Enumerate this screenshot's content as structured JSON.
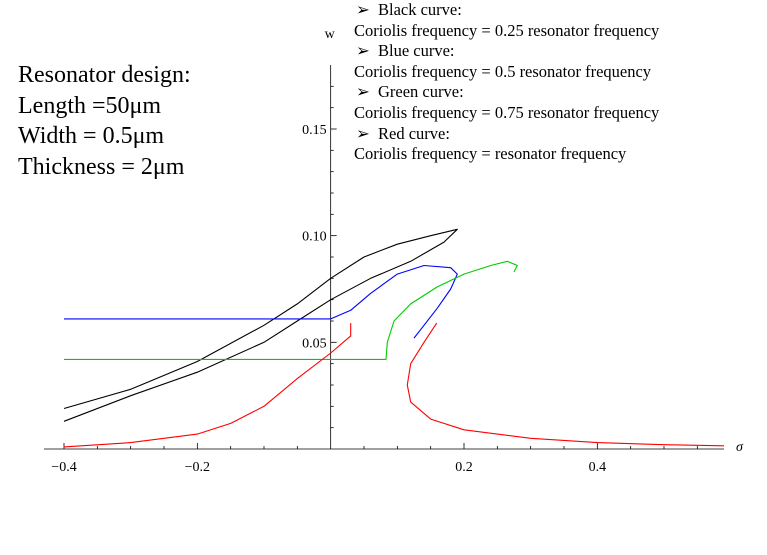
{
  "design": {
    "heading": "Resonator design:",
    "length": "Length =50μm",
    "width": "Width = 0.5μm",
    "thickness": "Thickness = 2μm"
  },
  "legend": {
    "bullet": "➢",
    "items": [
      {
        "label": "Black curve:",
        "text": "Coriolis frequency = 0.25 resonator frequency"
      },
      {
        "label": "Blue curve:",
        "text": "Coriolis frequency = 0.5 resonator frequency"
      },
      {
        "label": "Green curve:",
        "text": "Coriolis frequency = 0.75 resonator frequency"
      },
      {
        "label": "Red curve:",
        "text": "Coriolis frequency = resonator frequency"
      }
    ]
  },
  "chart_data": {
    "type": "line",
    "xlabel": "σ",
    "ylabel": "w",
    "xlim": [
      -0.43,
      0.59
    ],
    "ylim": [
      0,
      0.18
    ],
    "xticks": [
      {
        "value": -0.4,
        "label": "−0.4"
      },
      {
        "value": -0.2,
        "label": "−0.2"
      },
      {
        "value": 0.2,
        "label": "0.2"
      },
      {
        "value": 0.4,
        "label": "0.4"
      }
    ],
    "yticks": [
      {
        "value": 0.05,
        "label": "0.05"
      },
      {
        "value": 0.1,
        "label": "0.10"
      },
      {
        "value": 0.15,
        "label": "0.15"
      }
    ],
    "series": [
      {
        "color": "#000000",
        "role": "black-curve",
        "points": [
          [
            -0.4,
            0.019
          ],
          [
            -0.3,
            0.028
          ],
          [
            -0.2,
            0.041
          ],
          [
            -0.1,
            0.058
          ],
          [
            -0.05,
            0.068
          ],
          [
            0.0,
            0.08
          ],
          [
            0.05,
            0.09
          ],
          [
            0.1,
            0.096
          ],
          [
            0.15,
            0.1
          ],
          [
            0.19,
            0.103
          ],
          [
            0.17,
            0.097
          ],
          [
            0.12,
            0.088
          ],
          [
            0.06,
            0.08
          ],
          [
            0.0,
            0.07
          ],
          [
            -0.05,
            0.06
          ],
          [
            -0.1,
            0.05
          ],
          [
            -0.2,
            0.036
          ],
          [
            -0.3,
            0.025
          ],
          [
            -0.4,
            0.013
          ]
        ]
      },
      {
        "color": "#0000ff",
        "role": "blue-curve",
        "points": [
          [
            -0.4,
            0.061
          ],
          [
            -0.02,
            0.061
          ],
          [
            0.0,
            0.061
          ],
          [
            0.03,
            0.065
          ],
          [
            0.06,
            0.073
          ],
          [
            0.1,
            0.082
          ],
          [
            0.14,
            0.086
          ],
          [
            0.18,
            0.085
          ],
          [
            0.19,
            0.082
          ],
          [
            0.18,
            0.075
          ],
          [
            0.16,
            0.066
          ],
          [
            0.14,
            0.058
          ],
          [
            0.125,
            0.052
          ]
        ]
      },
      {
        "color": "#00cc00",
        "role": "green-curve",
        "points": [
          [
            -0.4,
            0.042
          ],
          [
            0.083,
            0.042
          ],
          [
            0.085,
            0.05
          ],
          [
            0.095,
            0.06
          ],
          [
            0.12,
            0.068
          ],
          [
            0.16,
            0.076
          ],
          [
            0.2,
            0.082
          ],
          [
            0.24,
            0.086
          ],
          [
            0.265,
            0.088
          ],
          [
            0.28,
            0.086
          ],
          [
            0.275,
            0.083
          ]
        ]
      },
      {
        "color": "#ff0000",
        "role": "red-curve-left",
        "points": [
          [
            -0.4,
            0.001
          ],
          [
            -0.3,
            0.003
          ],
          [
            -0.25,
            0.005
          ],
          [
            -0.2,
            0.007
          ],
          [
            -0.15,
            0.012
          ],
          [
            -0.1,
            0.02
          ],
          [
            -0.05,
            0.033
          ],
          [
            0.0,
            0.045
          ],
          [
            0.03,
            0.053
          ],
          [
            0.03,
            0.059
          ]
        ]
      },
      {
        "color": "#ff0000",
        "role": "red-curve-right",
        "points": [
          [
            0.159,
            0.059
          ],
          [
            0.14,
            0.05
          ],
          [
            0.12,
            0.04
          ],
          [
            0.115,
            0.03
          ],
          [
            0.12,
            0.022
          ],
          [
            0.15,
            0.014
          ],
          [
            0.2,
            0.009
          ],
          [
            0.3,
            0.005
          ],
          [
            0.4,
            0.003
          ],
          [
            0.5,
            0.002
          ],
          [
            0.59,
            0.0015
          ]
        ]
      }
    ]
  }
}
